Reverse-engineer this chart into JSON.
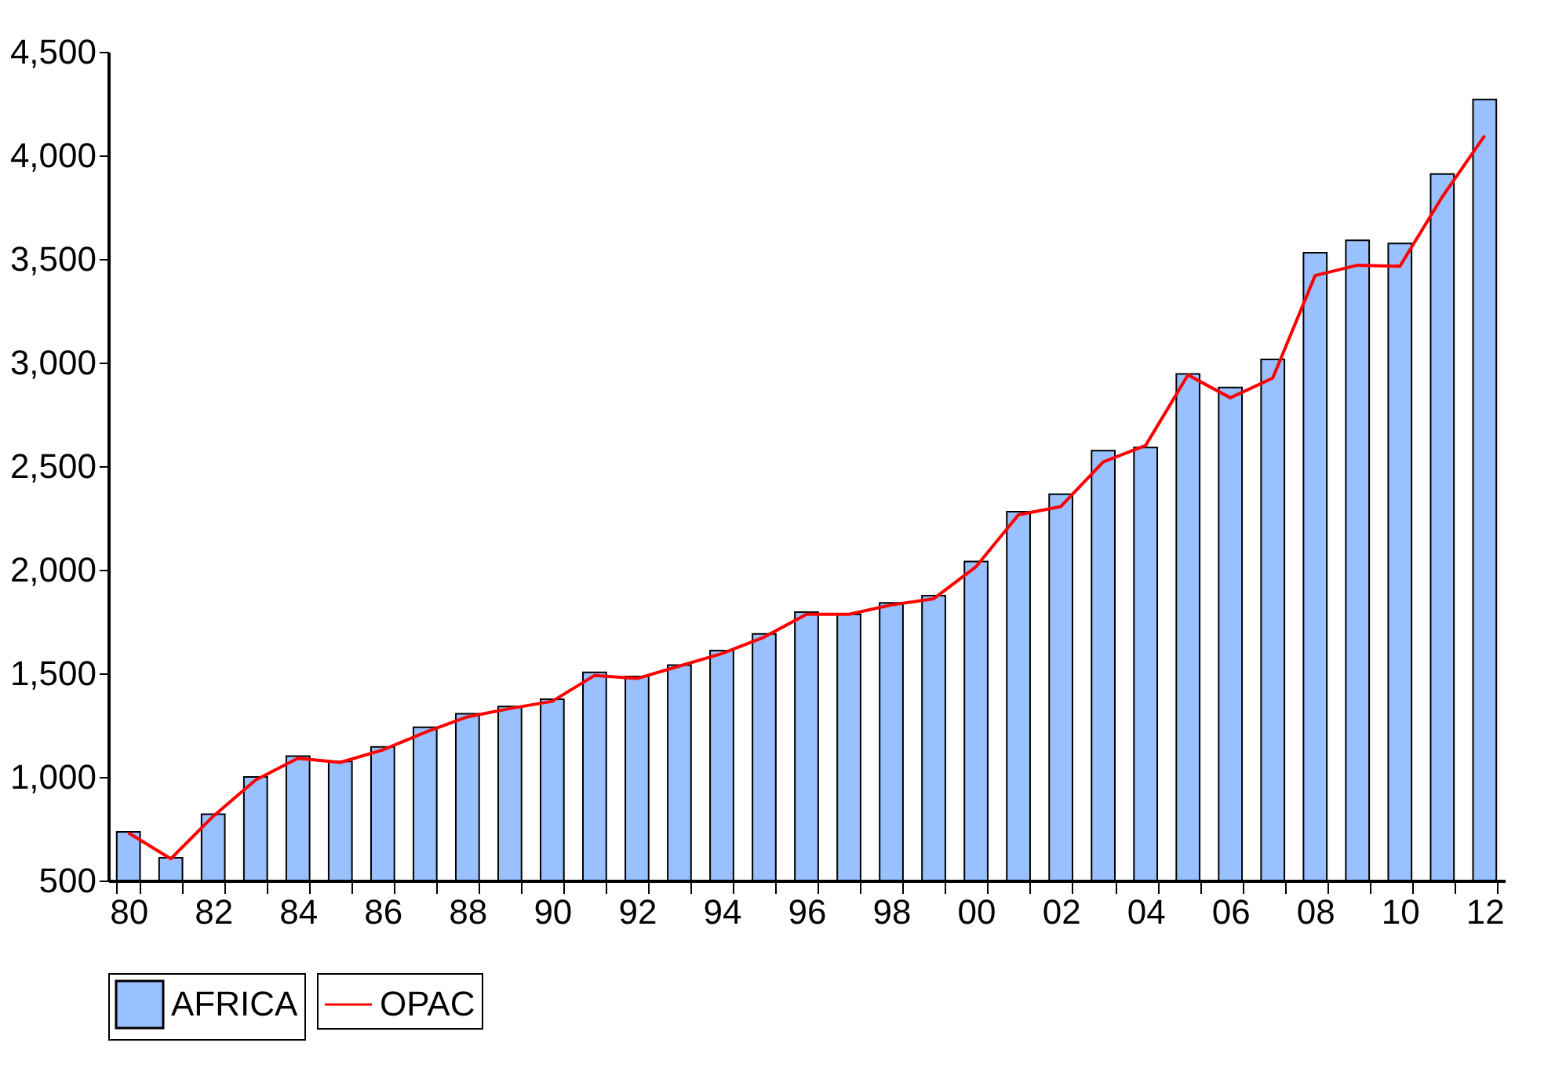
{
  "chart_data": {
    "type": "bar",
    "categories": [
      "80",
      null,
      "82",
      null,
      "84",
      null,
      "86",
      null,
      "88",
      null,
      "90",
      null,
      "92",
      null,
      "94",
      null,
      "96",
      null,
      "98",
      null,
      "00",
      null,
      "02",
      null,
      "04",
      null,
      "06",
      null,
      "08",
      null,
      "10",
      null,
      "12"
    ],
    "series": [
      {
        "name": "AFRICA",
        "color": "#99c0ff",
        "values": [
          735,
          610,
          820,
          1000,
          1100,
          1075,
          1145,
          1240,
          1305,
          1340,
          1375,
          1505,
          1485,
          1540,
          1610,
          1690,
          1795,
          1785,
          1840,
          1875,
          2040,
          2280,
          2365,
          2575,
          2590,
          2945,
          2880,
          3015,
          3530,
          3590,
          3575,
          3910,
          4270
        ]
      },
      {
        "name": "OPAC",
        "type": "line",
        "color": "#ff0000",
        "values": [
          730,
          605,
          810,
          985,
          1090,
          1070,
          1130,
          1215,
          1290,
          1330,
          1365,
          1490,
          1475,
          1535,
          1595,
          1675,
          1785,
          1785,
          1830,
          1860,
          2015,
          2265,
          2305,
          2520,
          2600,
          2940,
          2830,
          2925,
          3420,
          3470,
          3465,
          3800,
          4095
        ]
      }
    ],
    "ylim": [
      500,
      4500
    ],
    "yticks": [
      {
        "value": 500,
        "label": "500"
      },
      {
        "value": 1000,
        "label": "1,000"
      },
      {
        "value": 1500,
        "label": "1,500"
      },
      {
        "value": 2000,
        "label": "2,000"
      },
      {
        "value": 2500,
        "label": "2,500"
      },
      {
        "value": 3000,
        "label": "3,000"
      },
      {
        "value": 3500,
        "label": "3,500"
      },
      {
        "value": 4000,
        "label": "4,000"
      },
      {
        "value": 4500,
        "label": "4,500"
      }
    ],
    "grid": false,
    "legend": "bottom",
    "line_style": "solid",
    "marker": "none"
  }
}
